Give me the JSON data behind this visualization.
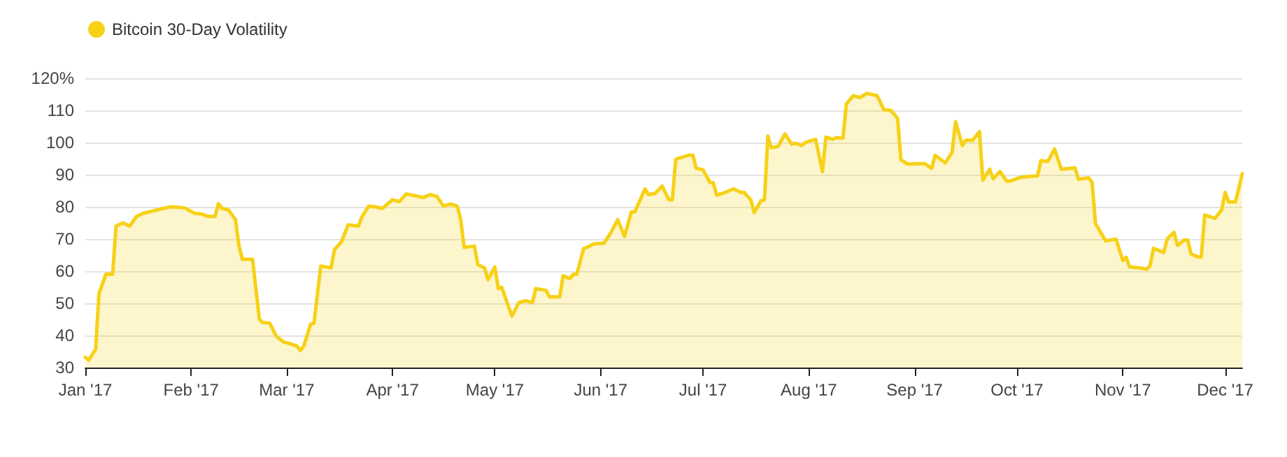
{
  "chart_data": {
    "type": "area",
    "legend": "top left",
    "grid": "y",
    "xlim": [
      "2017-01-01",
      "2017-12-06"
    ],
    "ylim": [
      30,
      120
    ],
    "xticks": [
      {
        "value": "2017-01-01",
        "label": "Jan '17"
      },
      {
        "value": "2017-02-01",
        "label": "Feb '17"
      },
      {
        "value": "2017-03-01",
        "label": "Mar '17"
      },
      {
        "value": "2017-04-01",
        "label": "Apr '17"
      },
      {
        "value": "2017-05-01",
        "label": "May '17"
      },
      {
        "value": "2017-06-01",
        "label": "Jun '17"
      },
      {
        "value": "2017-07-01",
        "label": "Jul '17"
      },
      {
        "value": "2017-08-01",
        "label": "Aug '17"
      },
      {
        "value": "2017-09-01",
        "label": "Sep '17"
      },
      {
        "value": "2017-10-01",
        "label": "Oct '17"
      },
      {
        "value": "2017-11-01",
        "label": "Nov '17"
      },
      {
        "value": "2017-12-01",
        "label": "Dec '17"
      }
    ],
    "yticks": [
      30,
      40,
      50,
      60,
      70,
      80,
      90,
      100,
      110,
      {
        "value": 120,
        "label": "120%"
      }
    ],
    "x": [
      "2017-01-01",
      "2017-01-02",
      "2017-01-04",
      "2017-01-05",
      "2017-01-07",
      "2017-01-09",
      "2017-01-10",
      "2017-01-12",
      "2017-01-14",
      "2017-01-16",
      "2017-01-18",
      "2017-01-20",
      "2017-01-23",
      "2017-01-26",
      "2017-01-30",
      "2017-02-02",
      "2017-02-04",
      "2017-02-06",
      "2017-02-08",
      "2017-02-09",
      "2017-02-10",
      "2017-02-12",
      "2017-02-14",
      "2017-02-15",
      "2017-02-16",
      "2017-02-19",
      "2017-02-21",
      "2017-02-22",
      "2017-02-24",
      "2017-02-26",
      "2017-02-28",
      "2017-03-02",
      "2017-03-04",
      "2017-03-05",
      "2017-03-06",
      "2017-03-08",
      "2017-03-09",
      "2017-03-11",
      "2017-03-14",
      "2017-03-15",
      "2017-03-17",
      "2017-03-19",
      "2017-03-22",
      "2017-03-23",
      "2017-03-25",
      "2017-03-27",
      "2017-03-29",
      "2017-04-01",
      "2017-04-03",
      "2017-04-05",
      "2017-04-07",
      "2017-04-10",
      "2017-04-12",
      "2017-04-14",
      "2017-04-16",
      "2017-04-18",
      "2017-04-20",
      "2017-04-21",
      "2017-04-22",
      "2017-04-25",
      "2017-04-26",
      "2017-04-28",
      "2017-04-29",
      "2017-05-01",
      "2017-05-02",
      "2017-05-03",
      "2017-05-05",
      "2017-05-06",
      "2017-05-08",
      "2017-05-10",
      "2017-05-12",
      "2017-05-13",
      "2017-05-16",
      "2017-05-17",
      "2017-05-20",
      "2017-05-21",
      "2017-05-23",
      "2017-05-24",
      "2017-05-25",
      "2017-05-27",
      "2017-05-28",
      "2017-05-30",
      "2017-06-02",
      "2017-06-04",
      "2017-06-06",
      "2017-06-08",
      "2017-06-10",
      "2017-06-11",
      "2017-06-14",
      "2017-06-15",
      "2017-06-17",
      "2017-06-19",
      "2017-06-21",
      "2017-06-22",
      "2017-06-23",
      "2017-06-27",
      "2017-06-28",
      "2017-06-29",
      "2017-07-01",
      "2017-07-03",
      "2017-07-04",
      "2017-07-05",
      "2017-07-07",
      "2017-07-10",
      "2017-07-12",
      "2017-07-13",
      "2017-07-15",
      "2017-07-16",
      "2017-07-18",
      "2017-07-19",
      "2017-07-20",
      "2017-07-21",
      "2017-07-23",
      "2017-07-25",
      "2017-07-27",
      "2017-07-28",
      "2017-07-30",
      "2017-07-31",
      "2017-08-01",
      "2017-08-03",
      "2017-08-05",
      "2017-08-06",
      "2017-08-08",
      "2017-08-09",
      "2017-08-11",
      "2017-08-12",
      "2017-08-14",
      "2017-08-16",
      "2017-08-18",
      "2017-08-21",
      "2017-08-23",
      "2017-08-25",
      "2017-08-27",
      "2017-08-28",
      "2017-08-30",
      "2017-09-02",
      "2017-09-04",
      "2017-09-06",
      "2017-09-07",
      "2017-09-10",
      "2017-09-12",
      "2017-09-13",
      "2017-09-15",
      "2017-09-16",
      "2017-09-18",
      "2017-09-20",
      "2017-09-21",
      "2017-09-23",
      "2017-09-24",
      "2017-09-26",
      "2017-09-28",
      "2017-09-29",
      "2017-10-02",
      "2017-10-04",
      "2017-10-07",
      "2017-10-08",
      "2017-10-10",
      "2017-10-12",
      "2017-10-14",
      "2017-10-18",
      "2017-10-19",
      "2017-10-22",
      "2017-10-23",
      "2017-10-24",
      "2017-10-27",
      "2017-10-30",
      "2017-11-01",
      "2017-11-02",
      "2017-11-03",
      "2017-11-06",
      "2017-11-08",
      "2017-11-09",
      "2017-11-10",
      "2017-11-13",
      "2017-11-14",
      "2017-11-16",
      "2017-11-17",
      "2017-11-19",
      "2017-11-20",
      "2017-11-21",
      "2017-11-23",
      "2017-11-24",
      "2017-11-25",
      "2017-11-28",
      "2017-11-30",
      "2017-12-01",
      "2017-12-02",
      "2017-12-04",
      "2017-12-06"
    ],
    "series": [
      {
        "name": "Bitcoin 30-Day Volatility",
        "color": "#f7d117",
        "values": [
          33.2,
          32.3,
          35.7,
          53,
          59,
          59,
          74,
          75,
          74,
          77,
          78,
          78.5,
          79.3,
          80,
          79.7,
          78,
          77.8,
          77,
          77,
          81,
          79.5,
          79,
          76,
          68,
          63.7,
          63.7,
          45,
          44,
          43.8,
          39.7,
          38,
          37.4,
          36.7,
          35.3,
          36.7,
          43.5,
          43.8,
          61.6,
          61,
          66.7,
          69,
          74.4,
          74,
          76.8,
          80.2,
          80,
          79.5,
          82.2,
          81.6,
          84,
          83.6,
          82.9,
          83.8,
          83.3,
          80.2,
          80.9,
          80.2,
          76,
          67.4,
          67.8,
          62,
          61,
          57.3,
          61.3,
          54.6,
          55,
          49,
          46,
          50.2,
          50.8,
          50.2,
          54.6,
          54,
          52,
          52,
          58.6,
          57.7,
          59,
          59,
          67,
          67.4,
          68.5,
          68.7,
          72,
          76,
          70.8,
          78.4,
          78.4,
          85.6,
          83.8,
          84.2,
          86.5,
          82.2,
          82.2,
          94.8,
          96.1,
          96.1,
          92,
          91.5,
          87.6,
          87.5,
          83.6,
          84.3,
          85.6,
          84.5,
          84.5,
          82.2,
          78.2,
          81.9,
          82.2,
          102,
          98.4,
          98.8,
          102.7,
          99.5,
          99.8,
          99.1,
          100,
          100.4,
          101,
          91,
          101.7,
          101,
          101.5,
          101.4,
          112,
          114.6,
          114,
          115.3,
          114.6,
          110.2,
          110,
          107.6,
          94.6,
          93.3,
          93.4,
          93.4,
          92,
          96,
          93.7,
          97,
          106.5,
          99.1,
          100.7,
          100.7,
          103.4,
          88.3,
          91.7,
          88.7,
          91,
          88,
          88,
          89.2,
          89.4,
          89.6,
          94.4,
          94.1,
          98,
          91.7,
          92.1,
          88.6,
          89,
          87.6,
          74.8,
          69.4,
          70,
          63.3,
          64.3,
          61.3,
          61,
          60.6,
          61.7,
          67.1,
          65.8,
          70,
          72.1,
          68,
          69.7,
          69.7,
          65.4,
          64.4,
          64.4,
          77.5,
          76.4,
          79.1,
          84.5,
          81.5,
          81.5,
          90.3
        ]
      }
    ]
  }
}
